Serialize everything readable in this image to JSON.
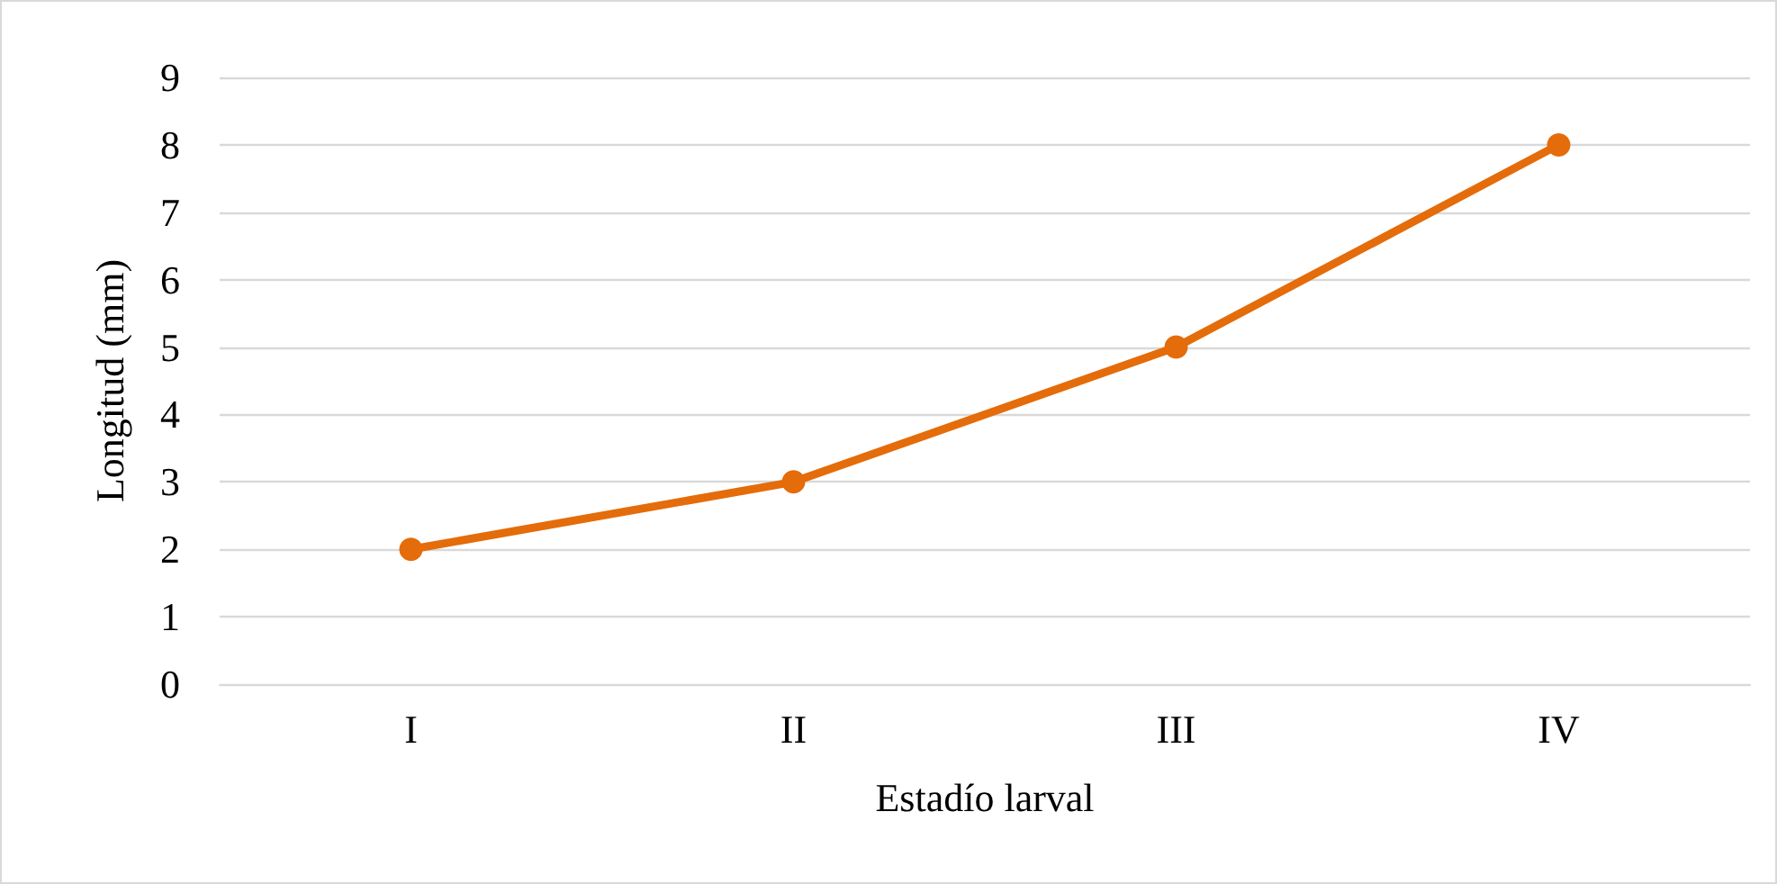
{
  "chart_data": {
    "type": "line",
    "xlabel": "Estadío larval",
    "ylabel": "Longitud (mm)",
    "categories": [
      "I",
      "II",
      "III",
      "IV"
    ],
    "series": [
      {
        "color": "#e46c0a",
        "values": [
          2,
          3,
          5,
          8
        ]
      }
    ],
    "ylim": [
      0,
      9
    ],
    "yticks": [
      0,
      1,
      2,
      3,
      4,
      5,
      6,
      7,
      8,
      9
    ],
    "grid": "y",
    "marker": "circle",
    "line_style": "solid"
  }
}
